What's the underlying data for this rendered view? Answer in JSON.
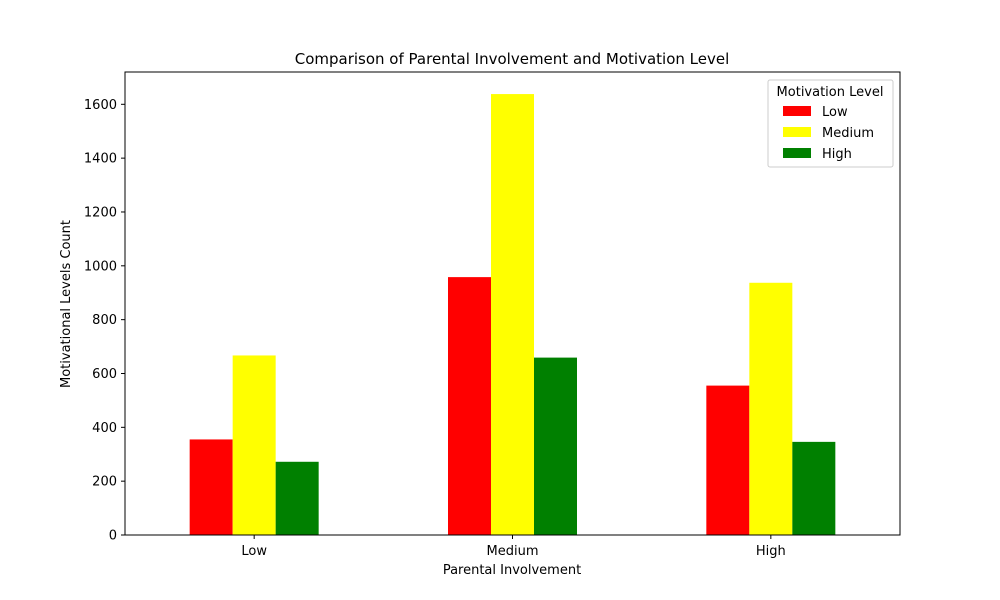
{
  "chart_data": {
    "type": "bar",
    "title": "Comparison of Parental Involvement and Motivation Level",
    "xlabel": "Parental Involvement",
    "ylabel": "Motivational Levels Count",
    "categories": [
      "Low",
      "Medium",
      "High"
    ],
    "series": [
      {
        "name": "Low",
        "color": "#ff0000",
        "values": [
          355,
          958,
          555
        ]
      },
      {
        "name": "Medium",
        "color": "#ffff00",
        "values": [
          667,
          1638,
          937
        ]
      },
      {
        "name": "High",
        "color": "#008000",
        "values": [
          272,
          659,
          346
        ]
      }
    ],
    "ylim": [
      0,
      1720
    ],
    "yticks": [
      0,
      200,
      400,
      600,
      800,
      1000,
      1200,
      1400,
      1600
    ],
    "grid": false,
    "legend": {
      "title": "Motivation Level",
      "placement": "top-right"
    }
  }
}
